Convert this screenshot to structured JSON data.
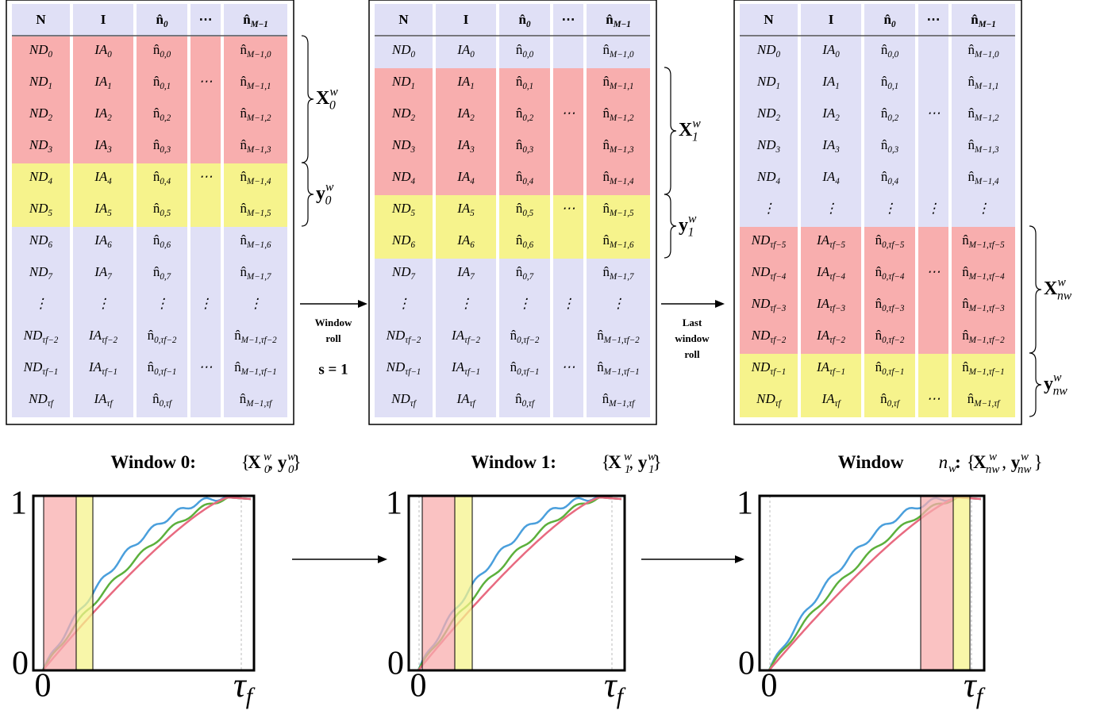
{
  "tables": [
    {
      "header": [
        [
          "N"
        ],
        [
          "I"
        ],
        [
          "n̂",
          "0"
        ],
        [
          "⋯"
        ],
        [
          "n̂",
          "M−1"
        ]
      ],
      "row_colors": [
        "#f8aeae",
        "#f8aeae",
        "#f8aeae",
        "#f8aeae",
        "#f6f38c",
        "#f6f38c",
        "#e0e0f6",
        "#e0e0f6",
        "#e0e0f6",
        "#e0e0f6",
        "#e0e0f6",
        "#e0e0f6"
      ],
      "rows": [
        [
          [
            "ND",
            "0"
          ],
          [
            "IA",
            "0"
          ],
          [
            "n̂",
            "0,0"
          ],
          null,
          [
            "n̂",
            "M−1,0"
          ]
        ],
        [
          [
            "ND",
            "1"
          ],
          [
            "IA",
            "1"
          ],
          [
            "n̂",
            "0,1"
          ],
          [
            "⋯"
          ],
          [
            "n̂",
            "M−1,1"
          ]
        ],
        [
          [
            "ND",
            "2"
          ],
          [
            "IA",
            "2"
          ],
          [
            "n̂",
            "0,2"
          ],
          null,
          [
            "n̂",
            "M−1,2"
          ]
        ],
        [
          [
            "ND",
            "3"
          ],
          [
            "IA",
            "3"
          ],
          [
            "n̂",
            "0,3"
          ],
          null,
          [
            "n̂",
            "M−1,3"
          ]
        ],
        [
          [
            "ND",
            "4"
          ],
          [
            "IA",
            "4"
          ],
          [
            "n̂",
            "0,4"
          ],
          [
            "⋯"
          ],
          [
            "n̂",
            "M−1,4"
          ]
        ],
        [
          [
            "ND",
            "5"
          ],
          [
            "IA",
            "5"
          ],
          [
            "n̂",
            "0,5"
          ],
          null,
          [
            "n̂",
            "M−1,5"
          ]
        ],
        [
          [
            "ND",
            "6"
          ],
          [
            "IA",
            "6"
          ],
          [
            "n̂",
            "0,6"
          ],
          null,
          [
            "n̂",
            "M−1,6"
          ]
        ],
        [
          [
            "ND",
            "7"
          ],
          [
            "IA",
            "7"
          ],
          [
            "n̂",
            "0,7"
          ],
          null,
          [
            "n̂",
            "M−1,7"
          ]
        ],
        [
          [
            "⋮"
          ],
          [
            "⋮"
          ],
          [
            "⋮"
          ],
          [
            "⋮"
          ],
          [
            "⋮"
          ]
        ],
        [
          [
            "ND",
            "τf−2"
          ],
          [
            "IA",
            "τf−2"
          ],
          [
            "n̂",
            "0,τf−2"
          ],
          null,
          [
            "n̂",
            "M−1,τf−2"
          ]
        ],
        [
          [
            "ND",
            "τf−1"
          ],
          [
            "IA",
            "τf−1"
          ],
          [
            "n̂",
            "0,τf−1"
          ],
          [
            "⋯"
          ],
          [
            "n̂",
            "M−1,τf−1"
          ]
        ],
        [
          [
            "ND",
            "τf"
          ],
          [
            "IA",
            "τf"
          ],
          [
            "n̂",
            "0,τf"
          ],
          null,
          [
            "n̂",
            "M−1,τf"
          ]
        ]
      ],
      "braces": [
        [
          [
            "X",
            "b"
          ],
          [
            "w",
            "sup"
          ],
          [
            "0",
            "sub2"
          ]
        ],
        [
          [
            "y",
            "b"
          ],
          [
            "w",
            "sup"
          ],
          [
            "0",
            "sub2"
          ]
        ]
      ]
    },
    {
      "header": [
        [
          "N"
        ],
        [
          "I"
        ],
        [
          "n̂",
          "0"
        ],
        [
          "⋯"
        ],
        [
          "n̂",
          "M−1"
        ]
      ],
      "row_colors": [
        "#e0e0f6",
        "#f8aeae",
        "#f8aeae",
        "#f8aeae",
        "#f8aeae",
        "#f6f38c",
        "#f6f38c",
        "#e0e0f6",
        "#e0e0f6",
        "#e0e0f6",
        "#e0e0f6",
        "#e0e0f6"
      ],
      "rows": [
        [
          [
            "ND",
            "0"
          ],
          [
            "IA",
            "0"
          ],
          [
            "n̂",
            "0,0"
          ],
          null,
          [
            "n̂",
            "M−1,0"
          ]
        ],
        [
          [
            "ND",
            "1"
          ],
          [
            "IA",
            "1"
          ],
          [
            "n̂",
            "0,1"
          ],
          null,
          [
            "n̂",
            "M−1,1"
          ]
        ],
        [
          [
            "ND",
            "2"
          ],
          [
            "IA",
            "2"
          ],
          [
            "n̂",
            "0,2"
          ],
          [
            "⋯"
          ],
          [
            "n̂",
            "M−1,2"
          ]
        ],
        [
          [
            "ND",
            "3"
          ],
          [
            "IA",
            "3"
          ],
          [
            "n̂",
            "0,3"
          ],
          null,
          [
            "n̂",
            "M−1,3"
          ]
        ],
        [
          [
            "ND",
            "4"
          ],
          [
            "IA",
            "4"
          ],
          [
            "n̂",
            "0,4"
          ],
          null,
          [
            "n̂",
            "M−1,4"
          ]
        ],
        [
          [
            "ND",
            "5"
          ],
          [
            "IA",
            "5"
          ],
          [
            "n̂",
            "0,5"
          ],
          [
            "⋯"
          ],
          [
            "n̂",
            "M−1,5"
          ]
        ],
        [
          [
            "ND",
            "6"
          ],
          [
            "IA",
            "6"
          ],
          [
            "n̂",
            "0,6"
          ],
          null,
          [
            "n̂",
            "M−1,6"
          ]
        ],
        [
          [
            "ND",
            "7"
          ],
          [
            "IA",
            "7"
          ],
          [
            "n̂",
            "0,7"
          ],
          null,
          [
            "n̂",
            "M−1,7"
          ]
        ],
        [
          [
            "⋮"
          ],
          [
            "⋮"
          ],
          [
            "⋮"
          ],
          [
            "⋮"
          ],
          [
            "⋮"
          ]
        ],
        [
          [
            "ND",
            "τf−2"
          ],
          [
            "IA",
            "τf−2"
          ],
          [
            "n̂",
            "0,τf−2"
          ],
          null,
          [
            "n̂",
            "M−1,τf−2"
          ]
        ],
        [
          [
            "ND",
            "τf−1"
          ],
          [
            "IA",
            "τf−1"
          ],
          [
            "n̂",
            "0,τf−1"
          ],
          [
            "⋯"
          ],
          [
            "n̂",
            "M−1,τf−1"
          ]
        ],
        [
          [
            "ND",
            "τf"
          ],
          [
            "IA",
            "τf"
          ],
          [
            "n̂",
            "0,τf"
          ],
          null,
          [
            "n̂",
            "M−1,τf"
          ]
        ]
      ],
      "braces": [
        [
          [
            "X",
            "b"
          ],
          [
            "w",
            "sup"
          ],
          [
            "1",
            "sub2"
          ]
        ],
        [
          [
            "y",
            "b"
          ],
          [
            "w",
            "sup"
          ],
          [
            "1",
            "sub2"
          ]
        ]
      ]
    },
    {
      "header": [
        [
          "N"
        ],
        [
          "I"
        ],
        [
          "n̂",
          "0"
        ],
        [
          "⋯"
        ],
        [
          "n̂",
          "M−1"
        ]
      ],
      "row_colors": [
        "#e0e0f6",
        "#e0e0f6",
        "#e0e0f6",
        "#e0e0f6",
        "#e0e0f6",
        "#e0e0f6",
        "#f8aeae",
        "#f8aeae",
        "#f8aeae",
        "#f8aeae",
        "#f6f38c",
        "#f6f38c"
      ],
      "rows": [
        [
          [
            "ND",
            "0"
          ],
          [
            "IA",
            "0"
          ],
          [
            "n̂",
            "0,0"
          ],
          null,
          [
            "n̂",
            "M−1,0"
          ]
        ],
        [
          [
            "ND",
            "1"
          ],
          [
            "IA",
            "1"
          ],
          [
            "n̂",
            "0,1"
          ],
          null,
          [
            "n̂",
            "M−1,1"
          ]
        ],
        [
          [
            "ND",
            "2"
          ],
          [
            "IA",
            "2"
          ],
          [
            "n̂",
            "0,2"
          ],
          [
            "⋯"
          ],
          [
            "n̂",
            "M−1,2"
          ]
        ],
        [
          [
            "ND",
            "3"
          ],
          [
            "IA",
            "3"
          ],
          [
            "n̂",
            "0,3"
          ],
          null,
          [
            "n̂",
            "M−1,3"
          ]
        ],
        [
          [
            "ND",
            "4"
          ],
          [
            "IA",
            "4"
          ],
          [
            "n̂",
            "0,4"
          ],
          null,
          [
            "n̂",
            "M−1,4"
          ]
        ],
        [
          [
            "⋮"
          ],
          [
            "⋮"
          ],
          [
            "⋮"
          ],
          [
            "⋮"
          ],
          [
            "⋮"
          ]
        ],
        [
          [
            "ND",
            "τf−5"
          ],
          [
            "IA",
            "τf−5"
          ],
          [
            "n̂",
            "0,τf−5"
          ],
          null,
          [
            "n̂",
            "M−1,τf−5"
          ]
        ],
        [
          [
            "ND",
            "τf−4"
          ],
          [
            "IA",
            "τf−4"
          ],
          [
            "n̂",
            "0,τf−4"
          ],
          [
            "⋯"
          ],
          [
            "n̂",
            "M−1,τf−4"
          ]
        ],
        [
          [
            "ND",
            "τf−3"
          ],
          [
            "IA",
            "τf−3"
          ],
          [
            "n̂",
            "0,τf−3"
          ],
          null,
          [
            "n̂",
            "M−1,τf−3"
          ]
        ],
        [
          [
            "ND",
            "τf−2"
          ],
          [
            "IA",
            "τf−2"
          ],
          [
            "n̂",
            "0,τf−2"
          ],
          null,
          [
            "n̂",
            "M−1,τf−2"
          ]
        ],
        [
          [
            "ND",
            "τf−1"
          ],
          [
            "IA",
            "τf−1"
          ],
          [
            "n̂",
            "0,τf−1"
          ],
          null,
          [
            "n̂",
            "M−1,τf−1"
          ]
        ],
        [
          [
            "ND",
            "τf"
          ],
          [
            "IA",
            "τf"
          ],
          [
            "n̂",
            "0,τf"
          ],
          [
            "⋯"
          ],
          [
            "n̂",
            "M−1,τf"
          ]
        ]
      ],
      "braces": [
        [
          [
            "X",
            "b"
          ],
          [
            "w",
            "sup"
          ],
          [
            "nw",
            "sub2"
          ]
        ],
        [
          [
            "y",
            "b"
          ],
          [
            "w",
            "sup"
          ],
          [
            "nw",
            "sub2"
          ]
        ]
      ]
    }
  ],
  "arrows": [
    {
      "lines": [
        "Window",
        "roll"
      ],
      "step": "s = 1"
    },
    {
      "lines": [
        "Last",
        "window",
        "roll"
      ]
    }
  ],
  "plots": [
    {
      "title": [
        [
          "Window 0: ",
          "b"
        ],
        [
          "{",
          "n"
        ],
        [
          "X",
          "b"
        ],
        [
          "w",
          "sup"
        ],
        [
          "0",
          "sub2"
        ],
        [
          ", ",
          "n"
        ],
        [
          "y",
          "b"
        ],
        [
          "w",
          "sup"
        ],
        [
          "0",
          "sub2"
        ],
        [
          "}",
          "n"
        ]
      ],
      "y_top": "1",
      "y_bottom": "0",
      "x_left": "0",
      "x_right": [
        "τ",
        "f"
      ]
    },
    {
      "title": [
        [
          "Window 1: ",
          "b"
        ],
        [
          "{",
          "n"
        ],
        [
          "X",
          "b"
        ],
        [
          "w",
          "sup"
        ],
        [
          "1",
          "sub2"
        ],
        [
          ", ",
          "n"
        ],
        [
          "y",
          "b"
        ],
        [
          "w",
          "sup"
        ],
        [
          "1",
          "sub2"
        ],
        [
          "}",
          "n"
        ]
      ],
      "y_top": "1",
      "y_bottom": "0",
      "x_left": "0",
      "x_right": [
        "τ",
        "f"
      ]
    },
    {
      "title": [
        [
          "Window ",
          "b"
        ],
        [
          "n",
          "i"
        ],
        [
          "w",
          "sub"
        ],
        [
          ": ",
          "b"
        ],
        [
          "{",
          "n"
        ],
        [
          "X",
          "b"
        ],
        [
          "w",
          "sup"
        ],
        [
          "nw",
          "sub2"
        ],
        [
          ", ",
          "n"
        ],
        [
          "y",
          "b"
        ],
        [
          "w",
          "sup"
        ],
        [
          "nw",
          "sub2"
        ],
        [
          "}",
          "n"
        ]
      ],
      "y_top": "1",
      "y_bottom": "0",
      "x_left": "0",
      "x_right": [
        "τ",
        "f"
      ]
    }
  ]
}
